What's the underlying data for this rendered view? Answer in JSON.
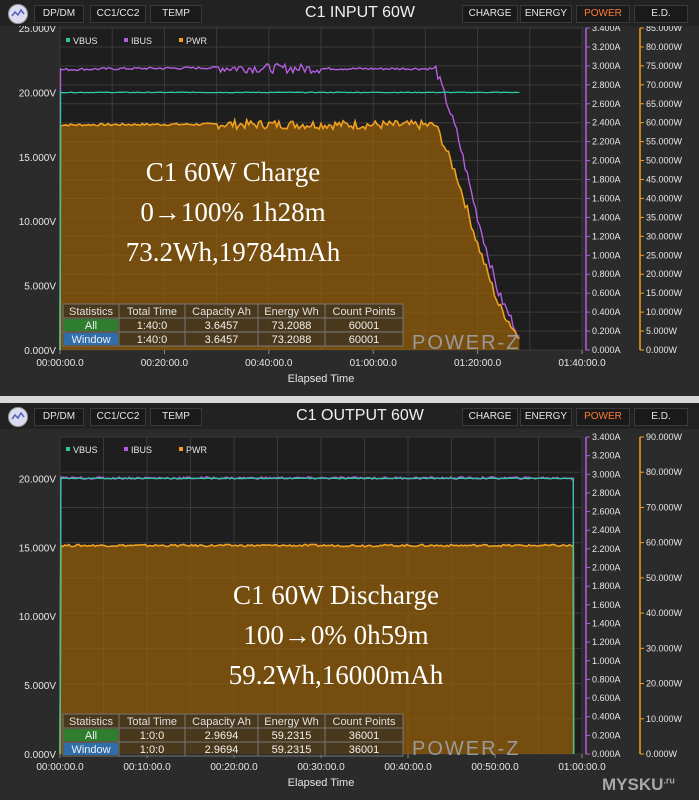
{
  "panels": [
    {
      "id": "p1",
      "title": "C1 INPUT 60W",
      "left_tabs": [
        "DP/DM",
        "CC1/CC2",
        "TEMP"
      ],
      "right_tabs": [
        "CHARGE",
        "ENERGY",
        "POWER",
        "E.D."
      ],
      "active_tab": "POWER",
      "legend": [
        "VBUS",
        "IBUS",
        "PWR"
      ],
      "xlabel": "Elapsed Time",
      "x_ticks": [
        "00:00:00.0",
        "00:20:00.0",
        "00:40:00.0",
        "01:00:00.0",
        "01:20:00.0",
        "01:40:00.0"
      ],
      "v_ticks": [
        "25.000V",
        "20.000V",
        "15.000V",
        "10.000V",
        "5.000V",
        "0.000V"
      ],
      "i_ticks": [
        "3.400A",
        "3.200A",
        "3.000A",
        "2.800A",
        "2.600A",
        "2.400A",
        "2.200A",
        "2.000A",
        "1.800A",
        "1.600A",
        "1.400A",
        "1.200A",
        "1.000A",
        "0.800A",
        "0.600A",
        "0.400A",
        "0.200A",
        "0.000A"
      ],
      "w_ticks": [
        "85.000W",
        "80.000W",
        "75.000W",
        "70.000W",
        "65.000W",
        "60.000W",
        "55.000W",
        "50.000W",
        "45.000W",
        "40.000W",
        "35.000W",
        "30.000W",
        "25.000W",
        "20.000W",
        "15.000W",
        "10.000W",
        "5.000W",
        "0.000W"
      ],
      "annotation": [
        "C1 60W Charge",
        "0→100% 1h28m",
        "73.2Wh,19784mAh"
      ],
      "stats": {
        "headers": [
          "Statistics",
          "Total Time",
          "Capacity Ah",
          "Energy Wh",
          "Count Points"
        ],
        "rows": [
          [
            "All",
            "1:40:0",
            "3.6457",
            "73.2088",
            "60001"
          ],
          [
            "Window",
            "1:40:0",
            "3.6457",
            "73.2088",
            "60001"
          ]
        ]
      },
      "watermark": "POWER-Z"
    },
    {
      "id": "p2",
      "title": "C1 OUTPUT 60W",
      "left_tabs": [
        "DP/DM",
        "CC1/CC2",
        "TEMP"
      ],
      "right_tabs": [
        "CHARGE",
        "ENERGY",
        "POWER",
        "E.D."
      ],
      "active_tab": "POWER",
      "legend": [
        "VBUS",
        "IBUS",
        "PWR"
      ],
      "xlabel": "Elapsed Time",
      "x_ticks": [
        "00:00:00.0",
        "00:10:00.0",
        "00:20:00.0",
        "00:30:00.0",
        "00:40:00.0",
        "00:50:00.0",
        "01:00:00.0"
      ],
      "v_ticks": [
        "20.000V",
        "15.000V",
        "10.000V",
        "5.000V",
        "0.000V"
      ],
      "i_ticks": [
        "3.400A",
        "3.200A",
        "3.000A",
        "2.800A",
        "2.600A",
        "2.400A",
        "2.200A",
        "2.000A",
        "1.800A",
        "1.600A",
        "1.400A",
        "1.200A",
        "1.000A",
        "0.800A",
        "0.600A",
        "0.400A",
        "0.200A",
        "0.000A"
      ],
      "w_ticks": [
        "90.000W",
        "80.000W",
        "70.000W",
        "60.000W",
        "50.000W",
        "40.000W",
        "30.000W",
        "20.000W",
        "10.000W",
        "0.000W"
      ],
      "annotation": [
        "C1 60W Discharge",
        "100→0% 0h59m",
        "59.2Wh,16000mAh"
      ],
      "stats": {
        "headers": [
          "Statistics",
          "Total Time",
          "Capacity Ah",
          "Energy Wh",
          "Count Points"
        ],
        "rows": [
          [
            "All",
            "1:0:0",
            "2.9694",
            "59.2315",
            "36001"
          ],
          [
            "Window",
            "1:0:0",
            "2.9694",
            "59.2315",
            "36001"
          ]
        ]
      },
      "watermark": "POWER-Z"
    }
  ],
  "site_label": "MYSKU",
  "site_suffix": ".ru",
  "colors": {
    "vbus": "#2ec7a0",
    "ibus": "#b45ee0",
    "pwr": "#f0a020",
    "active": "#ff7a33"
  },
  "chart_data": [
    {
      "type": "line",
      "title": "C1 INPUT 60W",
      "xlabel": "Elapsed Time",
      "x_unit": "minutes",
      "xlim": [
        0,
        100
      ],
      "ylim_left_V": [
        0,
        25
      ],
      "ylim_mid_A": [
        0,
        3.4
      ],
      "ylim_right_W": [
        0,
        85
      ],
      "grid": true,
      "legend_position": "top-left",
      "series": [
        {
          "name": "VBUS",
          "axis": "V",
          "x": [
            0,
            0.1,
            1,
            88
          ],
          "values": [
            0,
            20.0,
            20.0,
            20.0
          ]
        },
        {
          "name": "IBUS",
          "axis": "A",
          "x": [
            0,
            0.1,
            10,
            30,
            50,
            70,
            72,
            76,
            80,
            84,
            88
          ],
          "values": [
            0,
            2.96,
            2.97,
            2.98,
            2.97,
            2.97,
            2.97,
            2.3,
            1.4,
            0.6,
            0.15
          ]
        },
        {
          "name": "PWR",
          "axis": "W",
          "x": [
            0,
            0.1,
            10,
            30,
            50,
            70,
            72,
            76,
            80,
            84,
            88
          ],
          "values": [
            0,
            59.4,
            59.5,
            59.6,
            59.5,
            59.4,
            59.3,
            46,
            28,
            12,
            3
          ]
        }
      ]
    },
    {
      "type": "line",
      "title": "C1 OUTPUT 60W",
      "xlabel": "Elapsed Time",
      "x_unit": "minutes",
      "xlim": [
        0,
        60
      ],
      "ylim_left_V": [
        0,
        23
      ],
      "ylim_mid_A": [
        0,
        3.4
      ],
      "ylim_right_W": [
        0,
        90
      ],
      "grid": true,
      "legend_position": "top-left",
      "series": [
        {
          "name": "VBUS",
          "axis": "V",
          "x": [
            0,
            0.1,
            59,
            59.05
          ],
          "values": [
            0,
            20.0,
            20.0,
            0
          ]
        },
        {
          "name": "IBUS",
          "axis": "A",
          "x": [
            0,
            0.1,
            59,
            59.05
          ],
          "values": [
            0,
            2.96,
            2.96,
            0
          ]
        },
        {
          "name": "PWR",
          "axis": "W",
          "x": [
            0,
            0.1,
            59,
            59.05
          ],
          "values": [
            0,
            59.2,
            59.2,
            0
          ]
        }
      ]
    }
  ]
}
